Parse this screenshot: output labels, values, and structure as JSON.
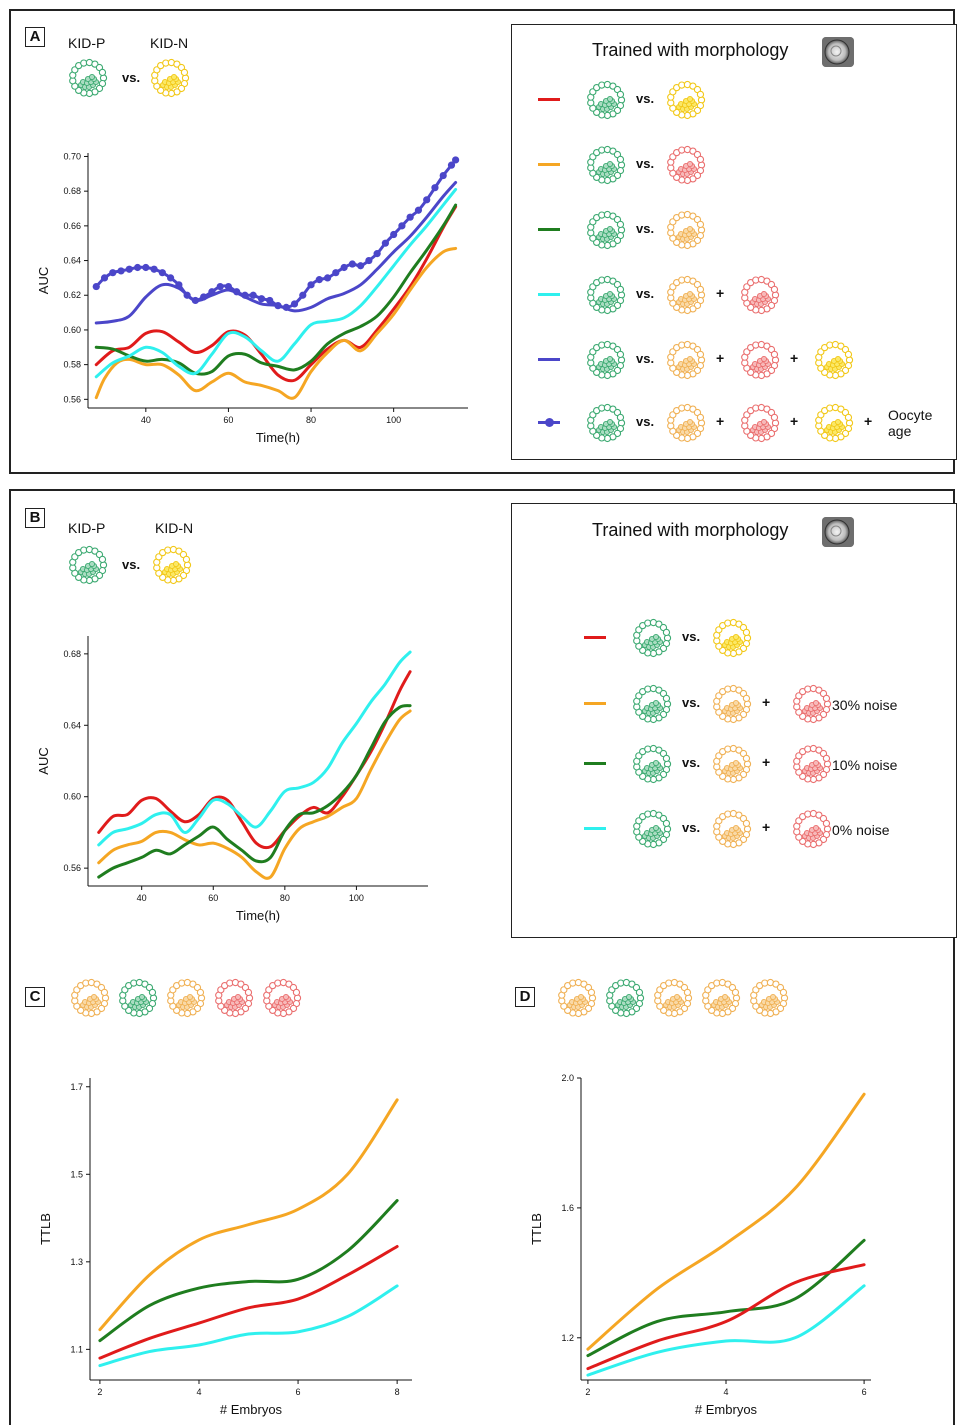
{
  "colors": {
    "kidp": "#3daa72",
    "kidp_fill": "#a9dcc1",
    "kidn_yellow": "#f2c818",
    "kidn_yellow_fill": "#fbe866",
    "orange": "#f0b155",
    "orange_fill": "#f9d9a6",
    "salmon": "#ea6f6f",
    "salmon_fill": "#f7b9b9",
    "red": "#e01b1b",
    "amber": "#f5a623",
    "green": "#1f7d1f",
    "cyan": "#2ff0ee",
    "blue": "#4b46c9"
  },
  "panelA": {
    "letter": "A",
    "kidp": "KID-P",
    "kidn": "KID-N",
    "vs": "vs.",
    "legend_title": "Trained with morphology",
    "legend_rows": [
      {
        "line": "red",
        "items": [
          "yellow"
        ]
      },
      {
        "line": "amber",
        "items": [
          "salmon"
        ]
      },
      {
        "line": "green",
        "items": [
          "orange"
        ]
      },
      {
        "line": "cyan",
        "items": [
          "orange",
          "salmon"
        ]
      },
      {
        "line": "blue",
        "items": [
          "orange",
          "salmon",
          "yellow"
        ]
      },
      {
        "line": "blue-marker",
        "items": [
          "orange",
          "salmon",
          "yellow"
        ],
        "extra": "Oocyte\nage"
      }
    ],
    "oocyte_label": "Oocyte age"
  },
  "panelB": {
    "letter": "B",
    "kidp": "KID-P",
    "kidn": "KID-N",
    "vs": "vs.",
    "legend_title": "Trained with morphology",
    "noise_labels": [
      "30% noise",
      "10% noise",
      "0% noise"
    ]
  },
  "panelC": {
    "letter": "C",
    "embryos": [
      "orange",
      "green",
      "orange",
      "salmon",
      "salmon"
    ]
  },
  "panelD": {
    "letter": "D",
    "embryos": [
      "orange",
      "green",
      "orange",
      "orange",
      "orange"
    ]
  },
  "chart_data": [
    {
      "id": "A",
      "type": "line",
      "xlabel": "Time(h)",
      "ylabel": "AUC",
      "xlim": [
        26,
        118
      ],
      "ylim": [
        0.555,
        0.702
      ],
      "xticks": [
        40,
        60,
        80,
        100
      ],
      "yticks": [
        0.56,
        0.58,
        0.6,
        0.62,
        0.64,
        0.66,
        0.68,
        0.7
      ],
      "series": [
        {
          "color": "red",
          "x": [
            28,
            32,
            36,
            40,
            44,
            48,
            52,
            56,
            60,
            64,
            68,
            72,
            76,
            80,
            84,
            88,
            92,
            96,
            100,
            104,
            108,
            112,
            115
          ],
          "y": [
            0.58,
            0.588,
            0.59,
            0.598,
            0.599,
            0.593,
            0.587,
            0.591,
            0.599,
            0.597,
            0.586,
            0.574,
            0.571,
            0.58,
            0.589,
            0.594,
            0.59,
            0.6,
            0.612,
            0.625,
            0.641,
            0.659,
            0.671
          ]
        },
        {
          "color": "amber",
          "x": [
            28,
            30,
            33,
            36,
            40,
            44,
            48,
            52,
            56,
            60,
            64,
            68,
            72,
            76,
            80,
            84,
            88,
            92,
            96,
            100,
            104,
            108,
            112,
            115
          ],
          "y": [
            0.561,
            0.572,
            0.581,
            0.583,
            0.58,
            0.58,
            0.574,
            0.565,
            0.57,
            0.575,
            0.57,
            0.568,
            0.565,
            0.561,
            0.576,
            0.587,
            0.594,
            0.588,
            0.598,
            0.609,
            0.623,
            0.636,
            0.645,
            0.647
          ]
        },
        {
          "color": "green",
          "x": [
            28,
            32,
            36,
            40,
            44,
            48,
            52,
            56,
            60,
            64,
            68,
            72,
            76,
            80,
            84,
            88,
            92,
            96,
            100,
            104,
            108,
            112,
            115
          ],
          "y": [
            0.59,
            0.589,
            0.585,
            0.582,
            0.583,
            0.581,
            0.575,
            0.576,
            0.585,
            0.586,
            0.581,
            0.579,
            0.577,
            0.582,
            0.592,
            0.598,
            0.602,
            0.608,
            0.619,
            0.633,
            0.646,
            0.66,
            0.672
          ]
        },
        {
          "color": "cyan",
          "x": [
            28,
            32,
            36,
            40,
            44,
            48,
            52,
            56,
            60,
            64,
            68,
            72,
            76,
            80,
            84,
            88,
            92,
            96,
            100,
            104,
            108,
            112,
            115
          ],
          "y": [
            0.573,
            0.581,
            0.585,
            0.59,
            0.587,
            0.579,
            0.575,
            0.586,
            0.598,
            0.596,
            0.588,
            0.582,
            0.592,
            0.603,
            0.605,
            0.607,
            0.614,
            0.625,
            0.637,
            0.649,
            0.66,
            0.672,
            0.681
          ]
        },
        {
          "color": "blue",
          "x": [
            28,
            32,
            36,
            40,
            44,
            48,
            52,
            56,
            60,
            64,
            68,
            72,
            76,
            80,
            84,
            88,
            92,
            96,
            100,
            104,
            108,
            112,
            115
          ],
          "y": [
            0.604,
            0.605,
            0.608,
            0.619,
            0.626,
            0.624,
            0.617,
            0.62,
            0.623,
            0.619,
            0.615,
            0.614,
            0.611,
            0.613,
            0.618,
            0.621,
            0.626,
            0.635,
            0.645,
            0.654,
            0.665,
            0.677,
            0.685
          ]
        },
        {
          "color": "blue",
          "marker": true,
          "x": [
            28,
            30,
            32,
            34,
            36,
            38,
            40,
            42,
            44,
            46,
            48,
            50,
            52,
            54,
            56,
            58,
            60,
            62,
            64,
            66,
            68,
            70,
            72,
            74,
            76,
            78,
            80,
            82,
            84,
            86,
            88,
            90,
            92,
            94,
            96,
            98,
            100,
            102,
            104,
            106,
            108,
            110,
            112,
            114,
            115
          ],
          "y": [
            0.625,
            0.63,
            0.633,
            0.634,
            0.635,
            0.636,
            0.636,
            0.635,
            0.633,
            0.63,
            0.626,
            0.62,
            0.617,
            0.619,
            0.622,
            0.625,
            0.625,
            0.622,
            0.62,
            0.62,
            0.618,
            0.617,
            0.614,
            0.613,
            0.615,
            0.62,
            0.626,
            0.629,
            0.63,
            0.633,
            0.636,
            0.638,
            0.637,
            0.64,
            0.644,
            0.65,
            0.655,
            0.66,
            0.665,
            0.669,
            0.675,
            0.682,
            0.689,
            0.695,
            0.698
          ]
        }
      ]
    },
    {
      "id": "B",
      "type": "line",
      "xlabel": "Time(h)",
      "ylabel": "AUC",
      "xlim": [
        25,
        120
      ],
      "ylim": [
        0.55,
        0.69
      ],
      "xticks": [
        40,
        60,
        80,
        100
      ],
      "yticks": [
        0.56,
        0.6,
        0.64,
        0.68
      ],
      "series": [
        {
          "color": "red",
          "x": [
            28,
            32,
            36,
            40,
            44,
            48,
            52,
            56,
            60,
            64,
            68,
            72,
            76,
            80,
            84,
            88,
            92,
            96,
            100,
            104,
            108,
            112,
            115
          ],
          "y": [
            0.58,
            0.589,
            0.59,
            0.598,
            0.599,
            0.592,
            0.586,
            0.59,
            0.599,
            0.598,
            0.586,
            0.574,
            0.572,
            0.581,
            0.589,
            0.594,
            0.591,
            0.6,
            0.612,
            0.625,
            0.641,
            0.659,
            0.67
          ]
        },
        {
          "color": "amber",
          "x": [
            28,
            32,
            36,
            40,
            44,
            48,
            52,
            56,
            60,
            64,
            68,
            72,
            76,
            80,
            84,
            88,
            92,
            96,
            100,
            104,
            108,
            112,
            115
          ],
          "y": [
            0.563,
            0.57,
            0.573,
            0.575,
            0.58,
            0.58,
            0.576,
            0.573,
            0.574,
            0.571,
            0.566,
            0.558,
            0.555,
            0.571,
            0.582,
            0.586,
            0.589,
            0.594,
            0.599,
            0.615,
            0.63,
            0.643,
            0.648
          ]
        },
        {
          "color": "green",
          "x": [
            28,
            32,
            36,
            40,
            44,
            48,
            52,
            56,
            60,
            64,
            68,
            72,
            76,
            80,
            84,
            88,
            92,
            96,
            100,
            104,
            108,
            112,
            115
          ],
          "y": [
            0.555,
            0.56,
            0.563,
            0.566,
            0.57,
            0.568,
            0.573,
            0.578,
            0.583,
            0.576,
            0.57,
            0.564,
            0.566,
            0.581,
            0.59,
            0.591,
            0.595,
            0.602,
            0.612,
            0.627,
            0.642,
            0.65,
            0.651
          ]
        },
        {
          "color": "cyan",
          "x": [
            28,
            32,
            36,
            40,
            44,
            48,
            52,
            56,
            60,
            64,
            68,
            72,
            76,
            80,
            84,
            88,
            92,
            96,
            100,
            104,
            108,
            112,
            115
          ],
          "y": [
            0.573,
            0.58,
            0.582,
            0.585,
            0.59,
            0.59,
            0.58,
            0.588,
            0.598,
            0.596,
            0.589,
            0.583,
            0.592,
            0.603,
            0.605,
            0.608,
            0.616,
            0.63,
            0.641,
            0.653,
            0.663,
            0.675,
            0.681
          ]
        }
      ]
    },
    {
      "id": "C",
      "type": "line",
      "xlabel": "# Embryos",
      "ylabel": "TTLB",
      "xlim": [
        1.8,
        8.3
      ],
      "ylim": [
        1.03,
        1.72
      ],
      "xticks": [
        2,
        4,
        6,
        8
      ],
      "yticks": [
        1.1,
        1.3,
        1.5,
        1.7
      ],
      "series": [
        {
          "color": "amber",
          "x": [
            2,
            3,
            4,
            5,
            6,
            7,
            8
          ],
          "y": [
            1.145,
            1.27,
            1.35,
            1.385,
            1.42,
            1.5,
            1.67
          ]
        },
        {
          "color": "green",
          "x": [
            2,
            3,
            4,
            5,
            6,
            7,
            8
          ],
          "y": [
            1.12,
            1.2,
            1.24,
            1.255,
            1.26,
            1.325,
            1.44
          ]
        },
        {
          "color": "red",
          "x": [
            2,
            3,
            4,
            5,
            6,
            7,
            8
          ],
          "y": [
            1.08,
            1.125,
            1.16,
            1.195,
            1.215,
            1.27,
            1.335
          ]
        },
        {
          "color": "cyan",
          "x": [
            2,
            3,
            4,
            5,
            6,
            7,
            8
          ],
          "y": [
            1.063,
            1.095,
            1.11,
            1.135,
            1.14,
            1.175,
            1.245
          ]
        }
      ]
    },
    {
      "id": "D",
      "type": "line",
      "xlabel": "# Embryos",
      "ylabel": "TTLB",
      "xlim": [
        1.9,
        6.1
      ],
      "ylim": [
        1.07,
        2.0
      ],
      "xticks": [
        2,
        4,
        6
      ],
      "yticks": [
        1.2,
        1.6,
        2.0
      ],
      "series": [
        {
          "color": "amber",
          "x": [
            2,
            3,
            4,
            5,
            6
          ],
          "y": [
            1.165,
            1.35,
            1.49,
            1.66,
            1.95
          ]
        },
        {
          "color": "green",
          "x": [
            2,
            3,
            4,
            5,
            6
          ],
          "y": [
            1.145,
            1.25,
            1.28,
            1.32,
            1.5
          ]
        },
        {
          "color": "red",
          "x": [
            2,
            3,
            4,
            5,
            6
          ],
          "y": [
            1.105,
            1.19,
            1.25,
            1.37,
            1.425
          ]
        },
        {
          "color": "cyan",
          "x": [
            2,
            3,
            4,
            5,
            6
          ],
          "y": [
            1.085,
            1.155,
            1.19,
            1.2,
            1.36
          ]
        }
      ]
    }
  ]
}
